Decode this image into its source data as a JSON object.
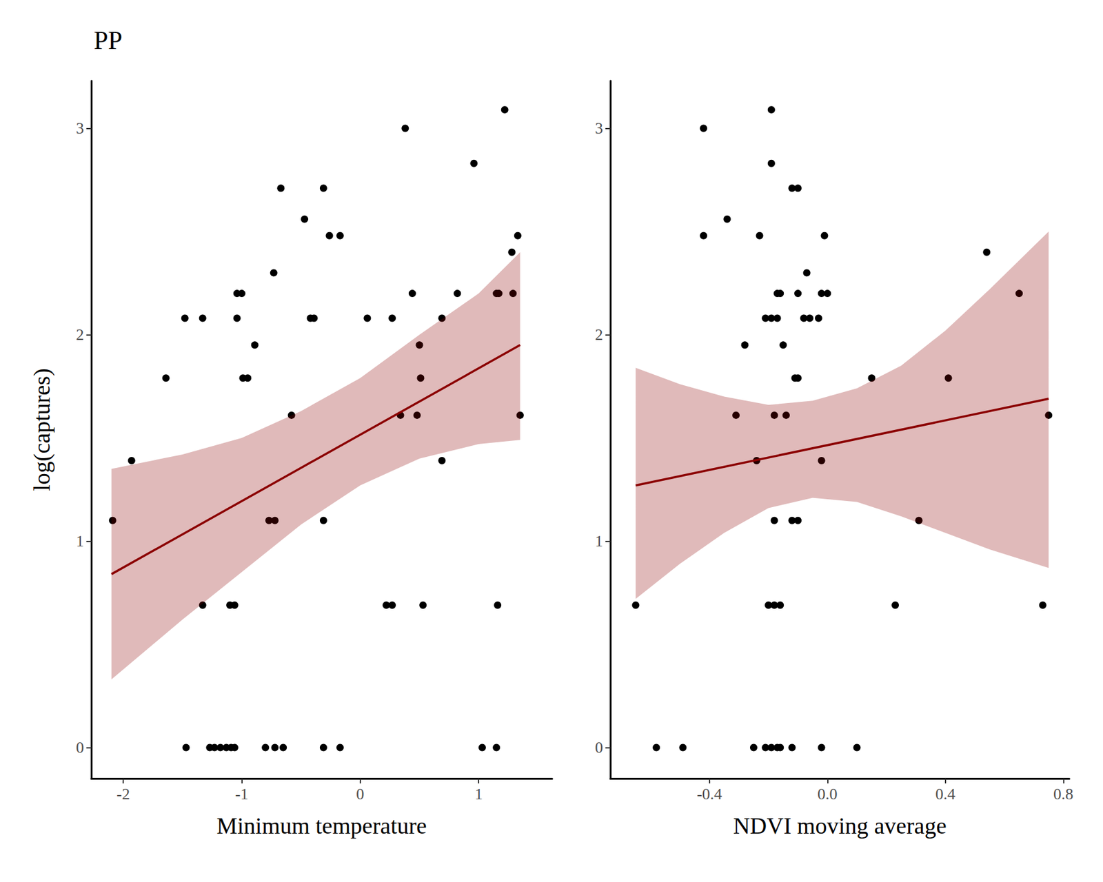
{
  "chart_data": [
    {
      "type": "scatter",
      "title": "PP",
      "x_label": "Minimum temperature",
      "y_label": "log(captures)",
      "color": "#000000",
      "x": [
        -2.09,
        -1.93,
        -1.64,
        -1.48,
        -1.33,
        -1.47,
        -1.33,
        -1.27,
        -1.23,
        -1.18,
        -1.13,
        -1.09,
        -1.06,
        -1.1,
        -1.06,
        -1.04,
        -1.0,
        -1.04,
        -0.99,
        -0.95,
        -0.89,
        -0.8,
        -0.72,
        -0.65,
        -0.77,
        -0.72,
        -0.73,
        -0.67,
        -0.58,
        -0.47,
        -0.42,
        -0.39,
        -0.31,
        -0.31,
        -0.31,
        -0.26,
        -0.17,
        -0.17,
        0.06,
        0.22,
        0.27,
        0.27,
        0.34,
        0.38,
        0.44,
        0.48,
        0.5,
        0.51,
        0.53,
        0.69,
        0.69,
        0.82,
        0.96,
        1.03,
        1.15,
        1.17,
        1.15,
        1.16,
        1.22,
        1.28,
        1.29,
        1.33,
        1.35
      ],
      "values": [
        1.1,
        1.39,
        1.79,
        2.08,
        2.08,
        0,
        0.69,
        0,
        0,
        0,
        0,
        0,
        0,
        0.69,
        0.69,
        2.2,
        2.2,
        2.08,
        1.79,
        1.79,
        1.95,
        0,
        0,
        0,
        1.1,
        1.1,
        2.3,
        2.71,
        1.61,
        2.56,
        2.08,
        2.08,
        2.71,
        1.1,
        0,
        2.48,
        2.48,
        0,
        2.08,
        0.69,
        0.69,
        2.08,
        1.61,
        3.0,
        2.2,
        1.61,
        1.95,
        1.79,
        0.69,
        2.08,
        1.39,
        2.2,
        2.83,
        0,
        2.2,
        2.2,
        0,
        0.69,
        3.09,
        2.4,
        2.2,
        2.48,
        1.61
      ],
      "fit": {
        "color": "#8b0000",
        "x": [
          -2.1,
          1.35
        ],
        "values": [
          0.84,
          1.95
        ]
      },
      "band": {
        "x": [
          -2.1,
          -1.5,
          -1.0,
          -0.5,
          0.0,
          0.5,
          1.0,
          1.35
        ],
        "lower": [
          0.33,
          0.62,
          0.85,
          1.08,
          1.27,
          1.4,
          1.47,
          1.49
        ],
        "upper": [
          1.35,
          1.42,
          1.5,
          1.63,
          1.79,
          2.0,
          2.2,
          2.4
        ]
      },
      "xlim": [
        -2.27,
        1.62
      ],
      "xticks": [
        -2,
        -1,
        0,
        1
      ],
      "ylim": [
        -0.15,
        3.23
      ],
      "yticks": [
        0,
        1,
        2,
        3
      ]
    },
    {
      "type": "scatter",
      "x_label": "NDVI moving average",
      "color": "#000000",
      "x": [
        -0.65,
        -0.58,
        -0.49,
        -0.42,
        -0.42,
        -0.34,
        -0.31,
        -0.28,
        -0.25,
        -0.24,
        -0.23,
        -0.21,
        -0.21,
        -0.19,
        -0.17,
        -0.16,
        -0.12,
        -0.2,
        -0.18,
        -0.16,
        -0.19,
        -0.19,
        -0.19,
        -0.17,
        -0.18,
        -0.18,
        -0.17,
        -0.16,
        -0.15,
        -0.14,
        -0.12,
        -0.1,
        -0.12,
        -0.1,
        -0.11,
        -0.1,
        -0.1,
        -0.08,
        -0.07,
        -0.06,
        -0.03,
        -0.02,
        -0.02,
        -0.02,
        0.0,
        -0.01,
        0.1,
        0.15,
        0.23,
        0.31,
        0.41,
        0.54,
        0.65,
        0.73,
        0.75
      ],
      "values": [
        0.69,
        0,
        0,
        2.48,
        3.0,
        2.56,
        1.61,
        1.95,
        0,
        1.39,
        2.48,
        2.08,
        0,
        0,
        0,
        0,
        0,
        0.69,
        0.69,
        0.69,
        2.83,
        3.09,
        2.08,
        2.08,
        1.61,
        1.1,
        2.2,
        2.2,
        1.95,
        1.61,
        2.71,
        2.71,
        1.1,
        1.1,
        1.79,
        1.79,
        2.2,
        2.08,
        2.3,
        2.08,
        2.08,
        1.39,
        0,
        2.2,
        2.2,
        2.48,
        0,
        1.79,
        0.69,
        1.1,
        1.79,
        2.4,
        2.2,
        0.69,
        1.61
      ],
      "fit": {
        "color": "#8b0000",
        "x": [
          -0.65,
          0.75
        ],
        "values": [
          1.27,
          1.69
        ]
      },
      "band": {
        "x": [
          -0.65,
          -0.5,
          -0.35,
          -0.2,
          -0.05,
          0.1,
          0.25,
          0.4,
          0.55,
          0.75
        ],
        "lower": [
          0.72,
          0.89,
          1.04,
          1.16,
          1.21,
          1.19,
          1.12,
          1.04,
          0.96,
          0.87
        ],
        "upper": [
          1.84,
          1.76,
          1.7,
          1.66,
          1.68,
          1.74,
          1.85,
          2.02,
          2.22,
          2.5
        ]
      },
      "xlim": [
        -0.736,
        0.82
      ],
      "xticks": [
        -0.4,
        {
          "value": 0,
          "label": "0.0"
        },
        0.4,
        0.8
      ],
      "ylim": [
        -0.15,
        3.23
      ],
      "yticks": [
        0,
        1,
        2,
        3
      ]
    }
  ]
}
